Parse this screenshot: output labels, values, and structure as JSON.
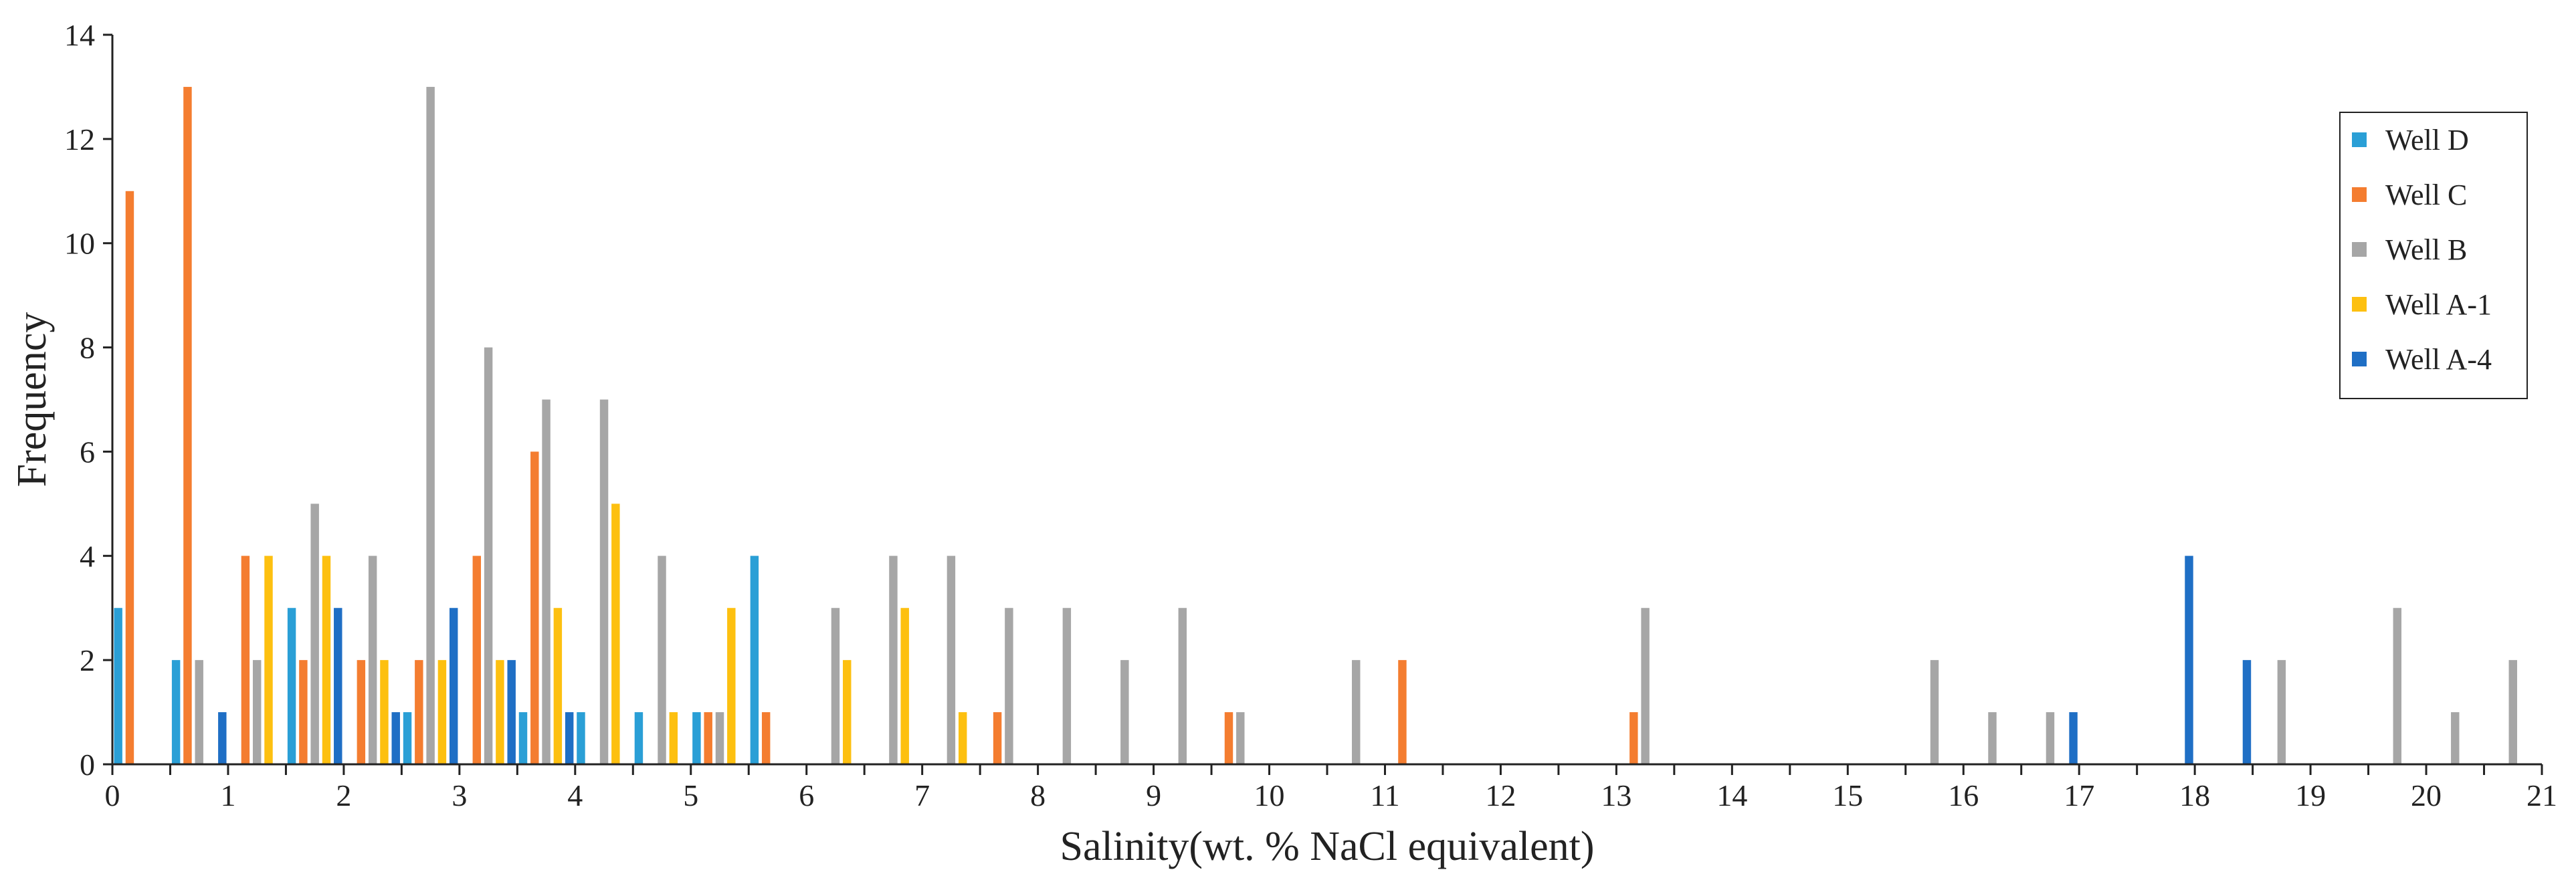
{
  "chart_data": {
    "type": "bar",
    "title": "",
    "xlabel": "Salinity(wt. % NaCl equivalent)",
    "ylabel": "Frequency",
    "xlim": [
      0,
      21
    ],
    "ylim": [
      0,
      14
    ],
    "x_ticks": [
      "0",
      "1",
      "2",
      "3",
      "4",
      "5",
      "6",
      "7",
      "8",
      "9",
      "10",
      "11",
      "12",
      "13",
      "14",
      "15",
      "16",
      "17",
      "18",
      "19",
      "20",
      "21"
    ],
    "y_ticks": [
      "0",
      "2",
      "4",
      "6",
      "8",
      "10",
      "12",
      "14"
    ],
    "bin_width": 0.5,
    "grid": false,
    "legend_position": "top-right",
    "series": [
      {
        "name": "Well D",
        "color": "#2a9fd6",
        "x": [
          0,
          0.5,
          1.5,
          2.5,
          3.5,
          4.0,
          4.5,
          5.0,
          5.5
        ],
        "values": [
          3,
          2,
          3,
          1,
          1,
          1,
          1,
          1,
          4
        ]
      },
      {
        "name": "Well C",
        "color": "#f47d30",
        "x": [
          0,
          0.5,
          1.0,
          1.5,
          2.0,
          2.5,
          3.0,
          3.5,
          5.0,
          5.5,
          7.5,
          9.5,
          11.0,
          13.0
        ],
        "values": [
          11,
          13,
          4,
          2,
          2,
          2,
          4,
          6,
          1,
          1,
          1,
          1,
          2,
          1
        ]
      },
      {
        "name": "Well B",
        "color": "#a6a6a6",
        "x": [
          0.5,
          1.0,
          1.5,
          2.0,
          2.5,
          3.0,
          3.5,
          4.0,
          4.5,
          5.0,
          6.0,
          6.5,
          7.0,
          7.5,
          8.0,
          8.5,
          9.0,
          9.5,
          10.5,
          13.0,
          15.5,
          16.0,
          16.5,
          18.5,
          19.5,
          20.0,
          20.5
        ],
        "values": [
          2,
          2,
          5,
          4,
          13,
          8,
          7,
          7,
          4,
          1,
          3,
          4,
          4,
          3,
          3,
          2,
          3,
          1,
          2,
          3,
          2,
          1,
          1,
          2,
          3,
          1,
          2
        ]
      },
      {
        "name": "Well A-1",
        "color": "#fdc010",
        "x": [
          1.0,
          1.5,
          2.0,
          2.5,
          3.0,
          3.5,
          4.0,
          4.5,
          5.0,
          6.0,
          6.5,
          7.0
        ],
        "values": [
          4,
          4,
          2,
          2,
          2,
          3,
          5,
          1,
          3,
          2,
          3,
          1
        ]
      },
      {
        "name": "Well A-4",
        "color": "#1f6fc5",
        "x": [
          0.5,
          1.5,
          2.0,
          2.5,
          3.0,
          3.5,
          16.5,
          17.5,
          18.0
        ],
        "values": [
          1,
          3,
          1,
          3,
          2,
          1,
          1,
          4,
          2
        ]
      }
    ]
  }
}
